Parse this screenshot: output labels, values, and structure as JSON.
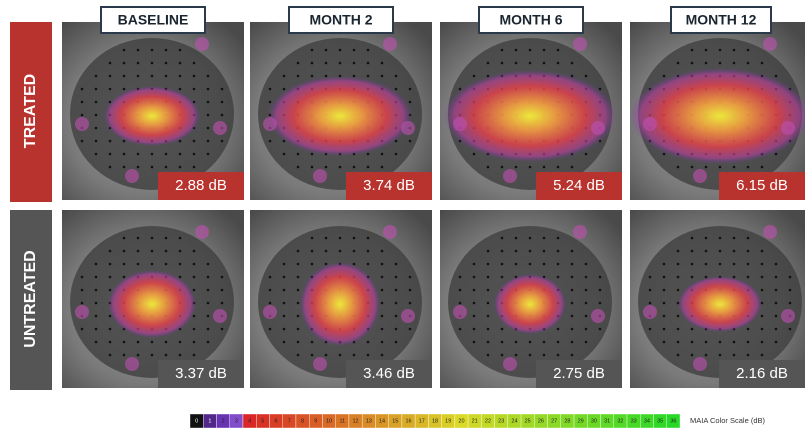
{
  "columns": [
    "BASELINE",
    "MONTH 2",
    "MONTH 6",
    "MONTH 12"
  ],
  "rows": [
    {
      "label": "TREATED",
      "values": [
        "2.88 dB",
        "3.74 dB",
        "5.24 dB",
        "6.15 dB"
      ]
    },
    {
      "label": "UNTREATED",
      "values": [
        "3.37 dB",
        "3.46 dB",
        "2.75 dB",
        "2.16 dB"
      ]
    }
  ],
  "color_scale": {
    "label": "MAIA Color Scale (dB)",
    "ticks": [
      0,
      1,
      2,
      3,
      4,
      5,
      6,
      7,
      8,
      9,
      10,
      11,
      12,
      13,
      14,
      15,
      16,
      17,
      18,
      19,
      20,
      21,
      22,
      23,
      24,
      25,
      26,
      27,
      28,
      29,
      30,
      31,
      32,
      33,
      34,
      35,
      36
    ]
  }
}
